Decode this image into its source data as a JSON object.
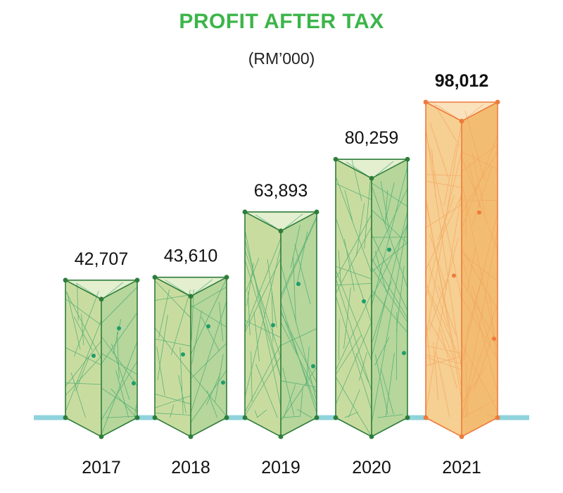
{
  "chart_data": {
    "type": "bar",
    "title": "PROFIT AFTER TAX",
    "subtitle": "(RM’000)",
    "categories": [
      "2017",
      "2018",
      "2019",
      "2020",
      "2021"
    ],
    "values": [
      42707,
      43610,
      63893,
      80259,
      98012
    ],
    "value_labels": [
      "42,707",
      "43,610",
      "63,893",
      "80,259",
      "98,012"
    ],
    "highlight_index": 4,
    "grid": false,
    "legend": "none"
  },
  "colors": {
    "title": "#3cb54a",
    "green_face": "#c9dca0",
    "green_face_right": "#b6d69c",
    "green_top": "#e3efcf",
    "green_edge": "#2e7d3a",
    "green_mesh": "#3aa56a",
    "green_dot": "#1f9d6a",
    "orange_face": "#f6cf92",
    "orange_face_right": "#f2bd72",
    "orange_top": "#fae2bd",
    "orange_edge": "#ee7b3b",
    "orange_mesh": "#f3a35c",
    "baseline": "#8fd3dc"
  }
}
